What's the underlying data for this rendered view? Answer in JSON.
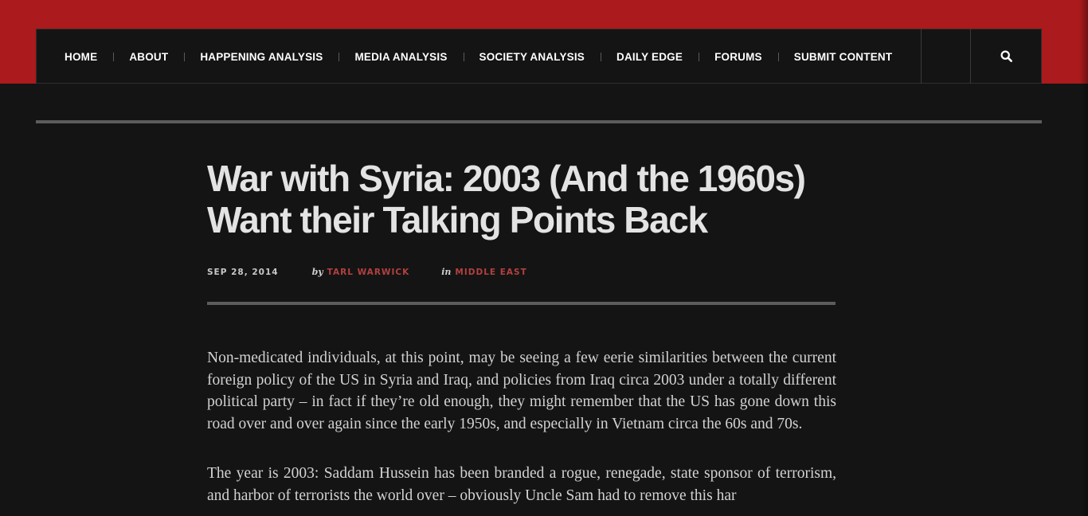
{
  "nav": {
    "items": [
      {
        "label": "HOME"
      },
      {
        "label": "ABOUT"
      },
      {
        "label": "HAPPENING ANALYSIS"
      },
      {
        "label": "MEDIA ANALYSIS"
      },
      {
        "label": "SOCIETY ANALYSIS"
      },
      {
        "label": "DAILY EDGE"
      },
      {
        "label": "FORUMS"
      },
      {
        "label": "SUBMIT CONTENT"
      }
    ],
    "search_icon": "search-icon"
  },
  "article": {
    "title_line1": "War with Syria: 2003 (And the 1960s)",
    "title_line2": "Want their Talking Points Back",
    "date": "SEP 28, 2014",
    "by_label": "by",
    "author": "TARL WARWICK",
    "in_label": "in",
    "category": "MIDDLE EAST",
    "paragraphs": [
      "Non-medicated individuals, at this point, may be seeing a few eerie similarities between the current foreign policy of the US in Syria and Iraq, and policies from Iraq circa 2003 under a totally different political party – in fact if they’re old enough, they might remember that the US has gone down this road over and over again since the early 1950s, and especially in Vietnam circa the 60s and 70s.",
      "The year is 2003: Saddam Hussein has been branded a rogue, renegade, state sponsor of terrorism, and harbor of terrorists the world over – obviously Uncle Sam had to remove this har"
    ]
  },
  "colors": {
    "brand_red": "#ab1a1c",
    "background": "#141414",
    "link_red": "#b34040"
  }
}
